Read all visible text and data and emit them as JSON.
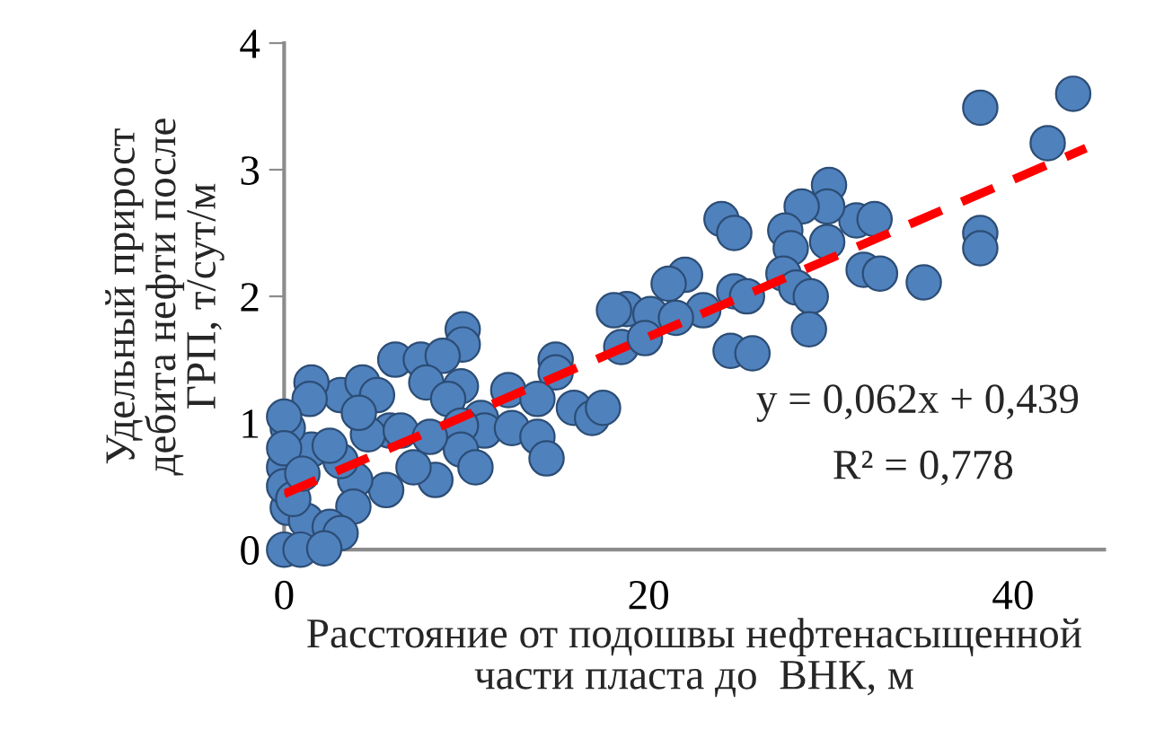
{
  "chart_data": {
    "type": "scatter",
    "xlabel": "Расстояние от подошвы нефтенасыщенной\nчасти пласта до  ВНК, м",
    "ylabel": "Удельный прирост\nдебита нефти после\nГРП, т/сут/м",
    "xlim": [
      0,
      45
    ],
    "ylim": [
      0,
      4
    ],
    "xticks": [
      0,
      20,
      40
    ],
    "yticks": [
      0,
      1,
      2,
      3,
      4
    ],
    "grid": false,
    "marker": "circle",
    "series": [
      {
        "color": "#4f81bd",
        "x": [
          38.2,
          43.3,
          41.9,
          38.2,
          38.2,
          35.1,
          31.8,
          32.7,
          31.4,
          32.4,
          29.9,
          29.8,
          28.4,
          29.8,
          27.5,
          27.8,
          27.4,
          28.1,
          28.9,
          28.8,
          24.0,
          24.7,
          24.7,
          25.4,
          24.5,
          25.7,
          23.0,
          22.0,
          21.1,
          18.8,
          18.1,
          20.1,
          21.5,
          18.5,
          19.8,
          9.8,
          9.8,
          6.1,
          7.5,
          8.7,
          7.8,
          9.7,
          9.0,
          10.8,
          11.0,
          12.3,
          14.9,
          14.9,
          13.9,
          15.9,
          16.9,
          17.5,
          12.5,
          13.9,
          14.4,
          9.7,
          9.7,
          10.5,
          8.3,
          7.1,
          5.8,
          4.6,
          5.6,
          3.9,
          3.8,
          3.1,
          4.3,
          5.1,
          1.5,
          1.4,
          1.5,
          0.2,
          0.0,
          0.0,
          0.2,
          1.2,
          2.5,
          3.1,
          0.0,
          0.9,
          2.2,
          3.1,
          2.5,
          6.4,
          8.0,
          4.1,
          0.0,
          0.0,
          0.5,
          1.0
        ],
        "values": [
          3.49,
          3.6,
          3.21,
          2.5,
          2.38,
          2.11,
          2.21,
          2.18,
          2.6,
          2.61,
          2.88,
          2.71,
          2.71,
          2.43,
          2.52,
          2.38,
          2.18,
          2.07,
          2.0,
          1.74,
          2.61,
          2.5,
          2.04,
          2.0,
          1.57,
          1.55,
          1.89,
          2.17,
          2.1,
          1.9,
          1.89,
          1.86,
          1.83,
          1.6,
          1.67,
          1.74,
          1.62,
          1.5,
          1.5,
          1.53,
          1.32,
          1.29,
          1.19,
          1.04,
          0.94,
          1.26,
          1.5,
          1.4,
          1.19,
          1.12,
          1.04,
          1.12,
          0.96,
          0.89,
          0.72,
          0.98,
          0.79,
          0.65,
          0.55,
          0.65,
          0.94,
          0.91,
          0.47,
          0.55,
          0.34,
          1.22,
          1.32,
          1.22,
          1.32,
          1.19,
          0.79,
          0.96,
          1.05,
          0.65,
          0.33,
          0.23,
          0.18,
          0.13,
          0.0,
          0.0,
          0.01,
          0.7,
          0.82,
          0.94,
          0.89,
          1.08,
          0.5,
          0.8,
          0.4,
          0.6
        ]
      },
      {
        "type": "line",
        "color": "#ff0000",
        "line_style": "dashed",
        "marker": "none",
        "x": [
          0,
          44
        ],
        "values": [
          0.44,
          3.17
        ]
      }
    ],
    "annotations": [
      "y = 0,062x + 0,439",
      "R² = 0,778"
    ]
  }
}
